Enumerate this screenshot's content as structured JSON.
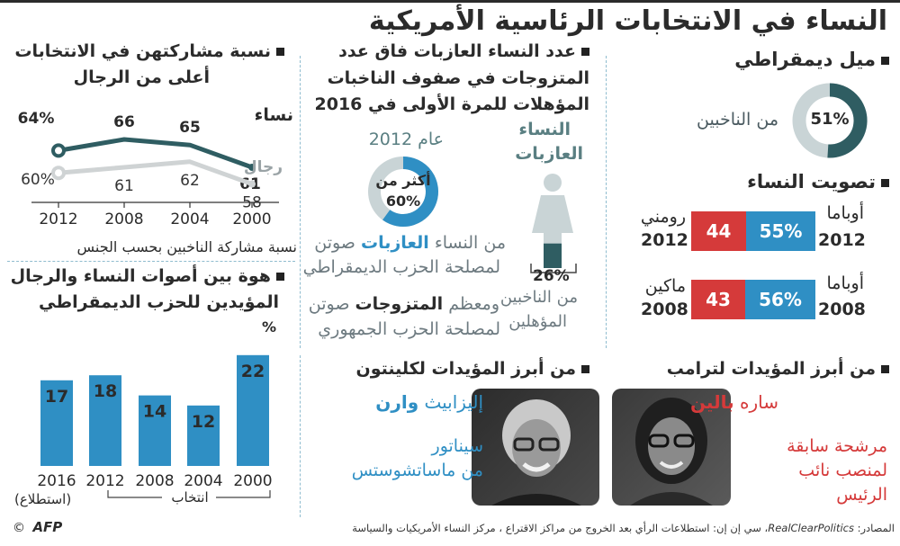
{
  "title": "النساء في الانتخابات الرئاسية الأمريكية",
  "colors": {
    "blue": "#2f8fc4",
    "red": "#d53a3a",
    "teal": "#2f5d62",
    "grey": "#c9cfd1"
  },
  "dem": {
    "heading": "ميل ديمقراطي",
    "pct_label": "51%",
    "value": 51,
    "caption": "من الناخبين"
  },
  "women_vote": {
    "heading": "تصويت النساء",
    "rows": [
      {
        "dem_name": "أوباما",
        "dem_year": "2012",
        "dem_pct": "55%",
        "dem_value": 55,
        "rep_name": "رومني",
        "rep_year": "2012",
        "rep_pct": "44",
        "rep_value": 44
      },
      {
        "dem_name": "أوباما",
        "dem_year": "2008",
        "dem_pct": "56%",
        "dem_value": 56,
        "rep_name": "ماكين",
        "rep_year": "2008",
        "rep_pct": "43",
        "rep_value": 43
      }
    ]
  },
  "single": {
    "heading_l1": "عدد النساء العازبات فاق عدد",
    "heading_l2": "المتزوجات في صفوف الناخبات",
    "heading_l3": "المؤهلات للمرة الأولى في 2016",
    "label_l1": "النساء",
    "label_l2": "العازبات",
    "pct": "26%",
    "fill_value": 26,
    "cap_l1": "من الناخبين",
    "cap_l2": "المؤهلين",
    "year_label": "عام 2012",
    "ring_l1": "أكثر من",
    "ring_l2": "60%",
    "ring_value": 60,
    "note1_l1a": "من النساء ",
    "note1_l1b": "العازبات",
    "note1_l1c": " صوتن",
    "note1_l2": "لمصلحة الحزب الديمقراطي",
    "note2_l1a": "ومعظم ",
    "note2_l1b": "المتزوجات",
    "note2_l1c": " صوتن",
    "note2_l2": "لمصلحة الحزب الجمهوري"
  },
  "turnout": {
    "heading_l1": "نسبة مشاركتهن في الانتخابات",
    "heading_l2": "أعلى من الرجال",
    "women_label": "نساء",
    "men_label": "رجال",
    "caption": "نسبة مشاركة الناخبين بحسب الجنس"
  },
  "gap": {
    "heading_l1": "هوة بين أصوات النساء والرجال",
    "heading_l2": "المؤيدين للحزب الديمقراطي",
    "unit": "%",
    "poll_label": "(استطلاع)",
    "election_label": "انتخاب"
  },
  "trump": {
    "heading": "من أبرز المؤيدات لترامب",
    "name_first": "ساره ",
    "name_last": "بالين",
    "desc_l1": "مرشحة سابقة",
    "desc_l2": "لمنصب نائب",
    "desc_l3": "الرئيس"
  },
  "clinton": {
    "heading": "من أبرز المؤيدات لكلينتون",
    "name_first": "إليزابيث ",
    "name_last": "وارن",
    "desc_l1": "سيناتور",
    "desc_l2": "من ماساتشوستس"
  },
  "footer": {
    "source_prefix": "المصادر: ",
    "source_italic": "RealClearPolitics",
    "source_rest": "، سي إن إن: استطلاعات الرأي بعد الخروج من مراكز الاقتراع ، مركز النساء الأمريكيات والسياسة",
    "copyright": "©",
    "logo": "AFP"
  },
  "chart_data": [
    {
      "type": "line",
      "title": "نسبة مشاركتهن في الانتخابات أعلى من الرجال",
      "xlabel": "نسبة مشاركة الناخبين بحسب الجنس",
      "ylabel": "",
      "x": [
        "2012",
        "2008",
        "2004",
        "2000"
      ],
      "series": [
        {
          "name": "نساء",
          "values": [
            64,
            66,
            65,
            61
          ],
          "labels": [
            "64%",
            "66",
            "65",
            "61"
          ]
        },
        {
          "name": "رجال",
          "values": [
            60,
            61,
            62,
            58
          ],
          "labels": [
            "60%",
            "61",
            "62",
            "58"
          ]
        }
      ],
      "ylim": [
        54,
        70
      ]
    },
    {
      "type": "bar",
      "title": "هوة بين أصوات النساء والرجال المؤيدين للحزب الديمقراطي",
      "ylabel": "%",
      "categories": [
        "2016",
        "2012",
        "2008",
        "2004",
        "2000"
      ],
      "values": [
        17,
        18,
        14,
        12,
        22
      ],
      "ylim": [
        0,
        22
      ]
    },
    {
      "type": "bar",
      "title": "تصويت النساء",
      "categories": [
        "2012",
        "2008"
      ],
      "series": [
        {
          "name": "أوباما",
          "values": [
            55,
            56
          ]
        },
        {
          "name": "رومني / ماكين",
          "values": [
            44,
            43
          ]
        }
      ]
    },
    {
      "type": "pie",
      "title": "ميل ديمقراطي",
      "categories": [
        "من الناخبين"
      ],
      "values": [
        51
      ]
    }
  ]
}
